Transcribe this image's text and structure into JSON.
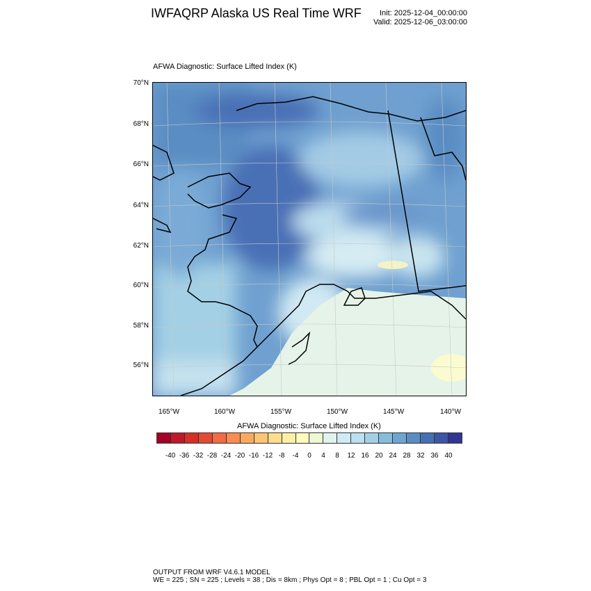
{
  "header": {
    "title": "IWFAQRP Alaska US Real Time WRF",
    "init": "Init: 2025-12-04_00:00:00",
    "valid": "Valid: 2025-12-06_03:00:00"
  },
  "plot": {
    "subtitle": "AFWA Diagnostic: Surface Lifted Index   (K)",
    "lat_labels": [
      "70°N",
      "68°N",
      "66°N",
      "64°N",
      "62°N",
      "60°N",
      "58°N",
      "56°N"
    ],
    "lon_labels": [
      "165°W",
      "160°W",
      "155°W",
      "150°W",
      "145°W",
      "140°W"
    ]
  },
  "colorbar": {
    "title": "AFWA Diagnostic: Surface Lifted Index  (K)",
    "labels": [
      "-40",
      "-36",
      "-32",
      "-28",
      "-24",
      "-20",
      "-16",
      "-12",
      "-8",
      "-4",
      "0",
      "4",
      "8",
      "12",
      "16",
      "20",
      "24",
      "28",
      "32",
      "36",
      "40"
    ],
    "colors": [
      "#a50026",
      "#bf1927",
      "#d62f27",
      "#e34a33",
      "#f26b43",
      "#f88c51",
      "#fca95f",
      "#fdc475",
      "#fedd8e",
      "#fdf0a6",
      "#fffcbd",
      "#eef8d6",
      "#e2f3ee",
      "#d0ebf4",
      "#bbe0ef",
      "#a3d0e5",
      "#87bcdb",
      "#6ea6cf",
      "#5a8dc3",
      "#4471b3",
      "#3a56a5",
      "#313695"
    ]
  },
  "footer": {
    "line1": "OUTPUT FROM WRF V4.6.1 MODEL",
    "line2": "WE = 225 ; SN = 225 ; Levels = 38 ; Dis = 8km ; Phys Opt = 8 ; PBL Opt = 1 ; Cu Opt = 3"
  }
}
